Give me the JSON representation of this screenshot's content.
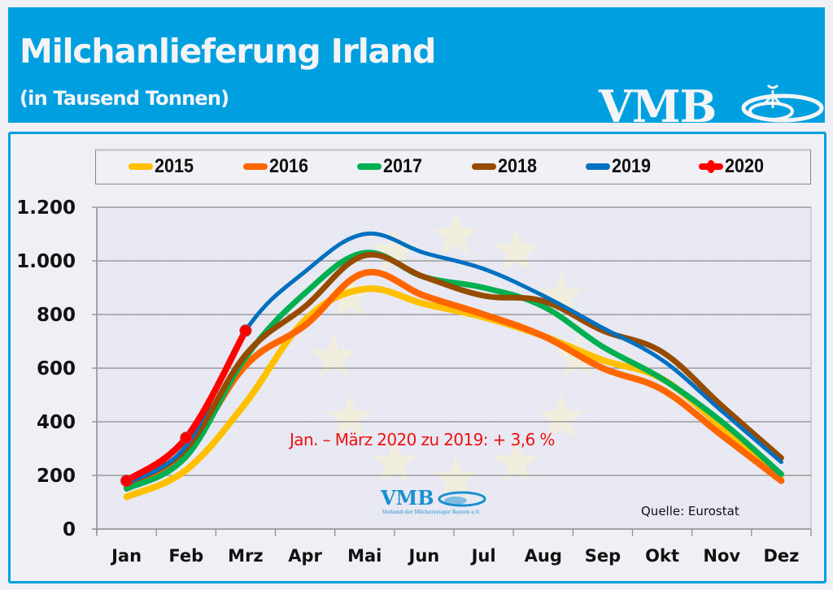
{
  "header": {
    "title": "Milchanlieferung Irland",
    "subtitle": "(in Tausend Tonnen)",
    "logo_text": "VMB",
    "background_color": "#00a0e0"
  },
  "annotation": "Jan. – März 2020 zu 2019: + 3,6 %",
  "source": "Quelle:  Eurostat",
  "watermark_logo": {
    "text": "VMB",
    "subtext": "Verband der Milcherzeuger Bayern e.V."
  },
  "chart_data": {
    "type": "line",
    "title": "Milchanlieferung Irland",
    "subtitle": "(in Tausend Tonnen)",
    "xlabel": "",
    "ylabel": "",
    "ylim": [
      0,
      1200
    ],
    "yticks": [
      0,
      200,
      400,
      600,
      800,
      1000,
      1200
    ],
    "ytick_labels": [
      "0",
      "200",
      "400",
      "600",
      "800",
      "1.000",
      "1.200"
    ],
    "grid": true,
    "legend_position": "top",
    "categories": [
      "Jan",
      "Feb",
      "Mrz",
      "Apr",
      "Mai",
      "Jun",
      "Jul",
      "Aug",
      "Sep",
      "Okt",
      "Nov",
      "Dez"
    ],
    "series": [
      {
        "name": "2015",
        "color": "#ffc000",
        "markers": false,
        "values": [
          120,
          220,
          470,
          780,
          895,
          840,
          790,
          720,
          630,
          560,
          380,
          185
        ]
      },
      {
        "name": "2016",
        "color": "#ff6600",
        "markers": false,
        "values": [
          155,
          290,
          610,
          760,
          955,
          870,
          800,
          720,
          600,
          520,
          350,
          180
        ]
      },
      {
        "name": "2017",
        "color": "#00b050",
        "markers": false,
        "values": [
          150,
          270,
          640,
          880,
          1030,
          940,
          900,
          830,
          680,
          560,
          400,
          205
        ]
      },
      {
        "name": "2018",
        "color": "#964B00",
        "markers": false,
        "values": [
          170,
          300,
          650,
          830,
          1020,
          940,
          870,
          850,
          740,
          660,
          460,
          265
        ]
      },
      {
        "name": "2019",
        "color": "#0070c0",
        "markers": false,
        "values": [
          170,
          310,
          740,
          960,
          1100,
          1030,
          970,
          870,
          750,
          630,
          440,
          250
        ]
      },
      {
        "name": "2020",
        "color": "#ff0000",
        "markers": true,
        "values": [
          180,
          340,
          740
        ]
      }
    ]
  }
}
